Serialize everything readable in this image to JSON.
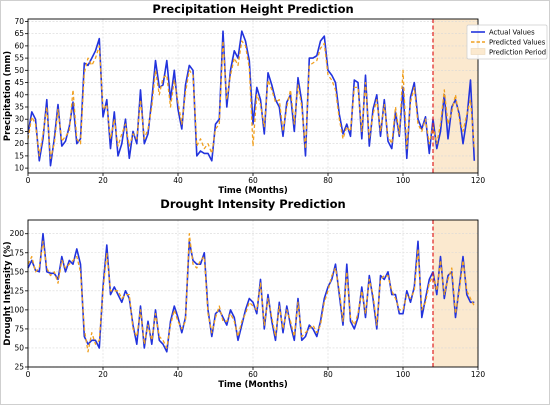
{
  "chart_data": [
    {
      "type": "line",
      "title": "Precipitation Height Prediction",
      "xlabel": "Time (Months)",
      "ylabel": "Precipitation (mm)",
      "xlim": [
        0,
        120
      ],
      "ylim": [
        8,
        71
      ],
      "xticks": [
        0,
        20,
        40,
        60,
        80,
        100,
        120
      ],
      "yticks": [
        10,
        15,
        20,
        25,
        30,
        35,
        40,
        45,
        50,
        55,
        60,
        65,
        70
      ],
      "grid": true,
      "legend_position": "top-right",
      "prediction_start": 108,
      "prediction_end": 120,
      "x": [
        0,
        1,
        2,
        3,
        4,
        5,
        6,
        7,
        8,
        9,
        10,
        11,
        12,
        13,
        14,
        15,
        16,
        17,
        18,
        19,
        20,
        21,
        22,
        23,
        24,
        25,
        26,
        27,
        28,
        29,
        30,
        31,
        32,
        33,
        34,
        35,
        36,
        37,
        38,
        39,
        40,
        41,
        42,
        43,
        44,
        45,
        46,
        47,
        48,
        49,
        50,
        51,
        52,
        53,
        54,
        55,
        56,
        57,
        58,
        59,
        60,
        61,
        62,
        63,
        64,
        65,
        66,
        67,
        68,
        69,
        70,
        71,
        72,
        73,
        74,
        75,
        76,
        77,
        78,
        79,
        80,
        81,
        82,
        83,
        84,
        85,
        86,
        87,
        88,
        89,
        90,
        91,
        92,
        93,
        94,
        95,
        96,
        97,
        98,
        99,
        100,
        101,
        102,
        103,
        104,
        105,
        106,
        107,
        108,
        109,
        110,
        111,
        112,
        113,
        114,
        115,
        116,
        117,
        118,
        119
      ],
      "series": [
        {
          "name": "Actual Values",
          "color": "#2233dd",
          "style": "solid",
          "values": [
            24,
            33,
            30,
            13,
            22,
            38,
            11,
            22,
            36,
            19,
            21,
            27,
            37,
            20,
            22,
            53,
            52,
            55,
            58,
            63,
            31,
            38,
            18,
            33,
            15,
            20,
            30,
            14,
            25,
            20,
            42,
            20,
            24,
            38,
            54,
            43,
            44,
            54,
            38,
            50,
            34,
            26,
            44,
            52,
            50,
            15,
            17,
            16,
            16,
            13,
            28,
            30,
            66,
            35,
            50,
            58,
            55,
            66,
            62,
            54,
            28,
            43,
            38,
            24,
            49,
            44,
            38,
            35,
            23,
            37,
            40,
            25,
            47,
            37,
            15,
            55,
            55,
            56,
            62,
            64,
            50,
            48,
            45,
            32,
            24,
            28,
            23,
            46,
            45,
            22,
            48,
            19,
            34,
            40,
            23,
            38,
            21,
            18,
            33,
            23,
            43,
            14,
            39,
            45,
            30,
            26,
            31,
            16,
            30,
            18,
            25,
            40,
            22,
            35,
            38,
            32,
            20,
            30,
            46,
            13
          ]
        },
        {
          "name": "Predicted Values",
          "color": "#f0a020",
          "style": "dashed",
          "values": [
            22,
            31,
            28,
            15,
            24,
            35,
            14,
            20,
            34,
            21,
            23,
            25,
            42,
            22,
            20,
            49,
            55,
            52,
            55,
            60,
            34,
            36,
            22,
            30,
            19,
            24,
            28,
            19,
            24,
            22,
            38,
            22,
            26,
            35,
            50,
            40,
            47,
            48,
            35,
            46,
            37,
            28,
            41,
            50,
            48,
            19,
            22,
            18,
            20,
            16,
            26,
            28,
            62,
            38,
            48,
            55,
            52,
            62,
            60,
            51,
            19,
            40,
            36,
            27,
            46,
            42,
            37,
            38,
            25,
            35,
            42,
            28,
            44,
            35,
            18,
            52,
            53,
            54,
            59,
            61,
            48,
            46,
            42,
            30,
            22,
            27,
            25,
            43,
            43,
            25,
            45,
            22,
            32,
            38,
            25,
            36,
            23,
            20,
            35,
            24,
            50,
            18,
            37,
            43,
            28,
            25,
            30,
            20,
            27,
            20,
            28,
            42,
            28,
            33,
            40,
            30,
            25,
            32,
            38,
            18
          ]
        }
      ]
    },
    {
      "type": "line",
      "title": "Drought Intensity Prediction",
      "xlabel": "Time (Months)",
      "ylabel": "Drought Intensity (%)",
      "xlim": [
        0,
        120
      ],
      "ylim": [
        25,
        218
      ],
      "xticks": [
        0,
        20,
        40,
        60,
        80,
        100,
        120
      ],
      "yticks": [
        25,
        50,
        75,
        100,
        125,
        150,
        175,
        200
      ],
      "grid": true,
      "prediction_start": 108,
      "prediction_end": 120,
      "x": [
        0,
        1,
        2,
        3,
        4,
        5,
        6,
        7,
        8,
        9,
        10,
        11,
        12,
        13,
        14,
        15,
        16,
        17,
        18,
        19,
        20,
        21,
        22,
        23,
        24,
        25,
        26,
        27,
        28,
        29,
        30,
        31,
        32,
        33,
        34,
        35,
        36,
        37,
        38,
        39,
        40,
        41,
        42,
        43,
        44,
        45,
        46,
        47,
        48,
        49,
        50,
        51,
        52,
        53,
        54,
        55,
        56,
        57,
        58,
        59,
        60,
        61,
        62,
        63,
        64,
        65,
        66,
        67,
        68,
        69,
        70,
        71,
        72,
        73,
        74,
        75,
        76,
        77,
        78,
        79,
        80,
        81,
        82,
        83,
        84,
        85,
        86,
        87,
        88,
        89,
        90,
        91,
        92,
        93,
        94,
        95,
        96,
        97,
        98,
        99,
        100,
        101,
        102,
        103,
        104,
        105,
        106,
        107,
        108,
        109,
        110,
        111,
        112,
        113,
        114,
        115,
        116,
        117,
        118,
        119
      ],
      "series": [
        {
          "name": "Actual Values",
          "color": "#2233dd",
          "style": "solid",
          "values": [
            155,
            165,
            152,
            150,
            200,
            150,
            148,
            148,
            140,
            170,
            150,
            165,
            160,
            180,
            160,
            65,
            55,
            60,
            60,
            50,
            130,
            185,
            120,
            130,
            120,
            110,
            125,
            115,
            80,
            55,
            105,
            50,
            85,
            55,
            100,
            60,
            55,
            45,
            85,
            105,
            90,
            70,
            90,
            190,
            165,
            160,
            160,
            175,
            100,
            65,
            95,
            100,
            90,
            80,
            100,
            90,
            60,
            80,
            100,
            115,
            110,
            95,
            140,
            75,
            120,
            85,
            60,
            110,
            70,
            105,
            80,
            60,
            115,
            60,
            65,
            80,
            75,
            65,
            85,
            115,
            130,
            140,
            160,
            120,
            80,
            160,
            85,
            75,
            90,
            130,
            90,
            145,
            115,
            75,
            145,
            140,
            150,
            120,
            120,
            95,
            95,
            125,
            110,
            130,
            190,
            90,
            115,
            140,
            150,
            120,
            170,
            115,
            145,
            150,
            90,
            130,
            170,
            120,
            110,
            110
          ]
        },
        {
          "name": "Predicted Values",
          "color": "#f0a020",
          "style": "dashed",
          "values": [
            160,
            170,
            150,
            155,
            190,
            155,
            145,
            150,
            135,
            165,
            155,
            160,
            165,
            170,
            150,
            75,
            45,
            70,
            55,
            60,
            125,
            175,
            125,
            125,
            125,
            115,
            120,
            120,
            75,
            65,
            100,
            55,
            80,
            60,
            95,
            65,
            60,
            50,
            80,
            100,
            85,
            75,
            85,
            200,
            160,
            155,
            165,
            170,
            95,
            70,
            90,
            105,
            85,
            85,
            95,
            85,
            65,
            85,
            95,
            110,
            105,
            100,
            135,
            80,
            115,
            90,
            65,
            105,
            75,
            100,
            85,
            65,
            110,
            65,
            70,
            75,
            80,
            70,
            80,
            110,
            125,
            145,
            155,
            125,
            85,
            150,
            90,
            80,
            95,
            125,
            95,
            140,
            120,
            80,
            140,
            145,
            145,
            125,
            115,
            100,
            100,
            120,
            115,
            125,
            180,
            100,
            110,
            135,
            145,
            125,
            165,
            120,
            140,
            155,
            95,
            125,
            165,
            125,
            115,
            105
          ]
        }
      ]
    }
  ],
  "legend": {
    "actual_label": "Actual Values",
    "predicted_label": "Predicted Values",
    "period_label": "Prediction Period"
  },
  "colors": {
    "actual": "#2233dd",
    "predicted": "#f0a020",
    "prediction_fill": "#fbe9cf",
    "prediction_line": "#e02020"
  }
}
